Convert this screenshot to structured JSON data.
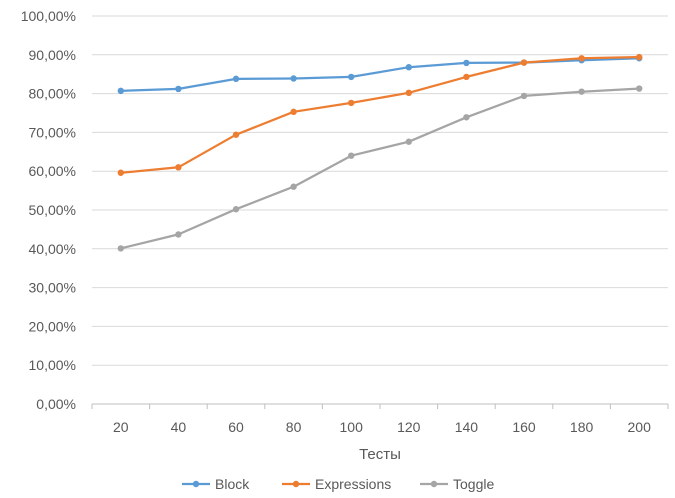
{
  "chart_data": {
    "type": "line",
    "title": "",
    "xlabel": "Тесты",
    "ylabel": "",
    "categories": [
      "20",
      "40",
      "60",
      "80",
      "100",
      "120",
      "140",
      "160",
      "180",
      "200"
    ],
    "ylim": [
      0,
      100
    ],
    "yticks": [
      "0,00%",
      "10,00%",
      "20,00%",
      "30,00%",
      "40,00%",
      "50,00%",
      "60,00%",
      "70,00%",
      "80,00%",
      "90,00%",
      "100,00%"
    ],
    "grid": true,
    "legend": "bottom",
    "series": [
      {
        "name": "Block",
        "color": "#5B9BD5",
        "values": [
          80.7,
          81.2,
          83.8,
          83.9,
          84.3,
          86.8,
          87.9,
          88.0,
          88.6,
          89.1
        ]
      },
      {
        "name": "Expressions",
        "color": "#ED7D31",
        "values": [
          59.6,
          61.0,
          69.4,
          75.3,
          77.6,
          80.2,
          84.3,
          88.0,
          89.1,
          89.4
        ]
      },
      {
        "name": "Toggle",
        "color": "#A5A5A5",
        "values": [
          40.1,
          43.7,
          50.2,
          56.0,
          64.0,
          67.6,
          73.9,
          79.4,
          80.5,
          81.3
        ]
      }
    ]
  }
}
